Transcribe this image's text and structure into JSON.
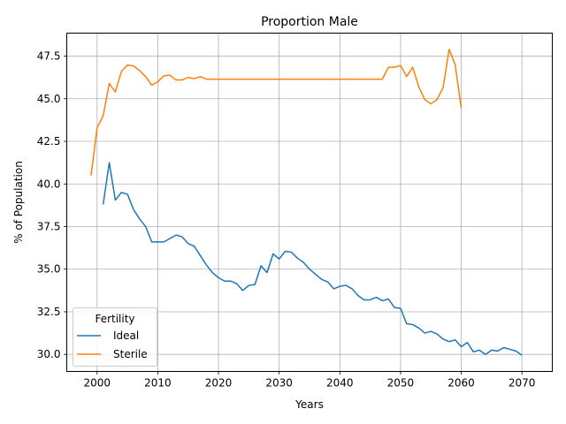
{
  "chart_data": {
    "type": "line",
    "title": "Proportion Male",
    "xlabel": "Years",
    "ylabel": "% of Population",
    "xlim": [
      1995,
      2075
    ],
    "ylim": [
      29.0,
      48.85
    ],
    "xticks": [
      2000,
      2010,
      2020,
      2030,
      2040,
      2050,
      2060,
      2070
    ],
    "yticks": [
      30.0,
      32.5,
      35.0,
      37.5,
      40.0,
      42.5,
      45.0,
      47.5
    ],
    "xtick_labels": [
      "2000",
      "2010",
      "2020",
      "2030",
      "2040",
      "2050",
      "2060",
      "2070"
    ],
    "ytick_labels": [
      "30.0",
      "32.5",
      "35.0",
      "37.5",
      "40.0",
      "42.5",
      "45.0",
      "47.5"
    ],
    "grid": true,
    "legend": {
      "title": "Fertility",
      "position": "lower-left",
      "entries": [
        "Ideal",
        "Sterile"
      ]
    },
    "series": [
      {
        "name": "Ideal",
        "color": "#1f77b4",
        "x": [
          2001,
          2002,
          2003,
          2004,
          2005,
          2006,
          2007,
          2008,
          2009,
          2010,
          2011,
          2012,
          2013,
          2014,
          2015,
          2016,
          2017,
          2018,
          2019,
          2020,
          2021,
          2022,
          2023,
          2024,
          2025,
          2026,
          2027,
          2028,
          2029,
          2030,
          2031,
          2032,
          2033,
          2034,
          2035,
          2036,
          2037,
          2038,
          2039,
          2040,
          2041,
          2042,
          2043,
          2044,
          2045,
          2046,
          2047,
          2048,
          2049,
          2050,
          2051,
          2052,
          2053,
          2054,
          2055,
          2056,
          2057,
          2058,
          2059,
          2060,
          2061,
          2062,
          2063,
          2064,
          2065,
          2066,
          2067,
          2068,
          2069,
          2070
        ],
        "values": [
          38.8,
          41.25,
          39.05,
          39.5,
          39.4,
          38.5,
          37.95,
          37.5,
          36.6,
          36.6,
          36.6,
          36.8,
          37.0,
          36.9,
          36.5,
          36.35,
          35.8,
          35.25,
          34.8,
          34.5,
          34.3,
          34.3,
          34.15,
          33.75,
          34.05,
          34.1,
          35.2,
          34.8,
          35.9,
          35.6,
          36.05,
          36.0,
          35.65,
          35.4,
          35.0,
          34.7,
          34.4,
          34.25,
          33.85,
          34.0,
          34.05,
          33.85,
          33.45,
          33.2,
          33.2,
          33.35,
          33.15,
          33.25,
          32.75,
          32.7,
          31.8,
          31.75,
          31.55,
          31.25,
          31.35,
          31.2,
          30.9,
          30.75,
          30.85,
          30.45,
          30.7,
          30.15,
          30.25,
          30.0,
          30.25,
          30.2,
          30.4,
          30.3,
          30.2,
          29.95
        ]
      },
      {
        "name": "Sterile",
        "color": "#ff7f0e",
        "x": [
          1999,
          2000,
          2001,
          2002,
          2003,
          2004,
          2005,
          2006,
          2007,
          2008,
          2009,
          2010,
          2011,
          2012,
          2013,
          2014,
          2015,
          2016,
          2017,
          2018,
          2019,
          2020,
          2021,
          2022,
          2023,
          2024,
          2025,
          2026,
          2027,
          2028,
          2029,
          2030,
          2031,
          2032,
          2033,
          2034,
          2035,
          2036,
          2037,
          2038,
          2039,
          2040,
          2041,
          2042,
          2043,
          2044,
          2045,
          2046,
          2047,
          2048,
          2049,
          2050,
          2051,
          2052,
          2053,
          2054,
          2055,
          2056,
          2057,
          2058,
          2059,
          2060
        ],
        "values": [
          40.5,
          43.3,
          44.0,
          45.9,
          45.4,
          46.6,
          46.98,
          46.92,
          46.65,
          46.3,
          45.8,
          46.0,
          46.35,
          46.38,
          46.1,
          46.1,
          46.25,
          46.18,
          46.3,
          46.15,
          46.15,
          46.15,
          46.15,
          46.15,
          46.15,
          46.15,
          46.15,
          46.15,
          46.15,
          46.15,
          46.15,
          46.15,
          46.15,
          46.15,
          46.15,
          46.15,
          46.15,
          46.15,
          46.15,
          46.15,
          46.15,
          46.15,
          46.15,
          46.15,
          46.15,
          46.15,
          46.15,
          46.15,
          46.15,
          46.85,
          46.85,
          46.95,
          46.3,
          46.85,
          45.7,
          44.95,
          44.7,
          44.95,
          45.65,
          47.9,
          47.0,
          44.45
        ]
      }
    ]
  }
}
